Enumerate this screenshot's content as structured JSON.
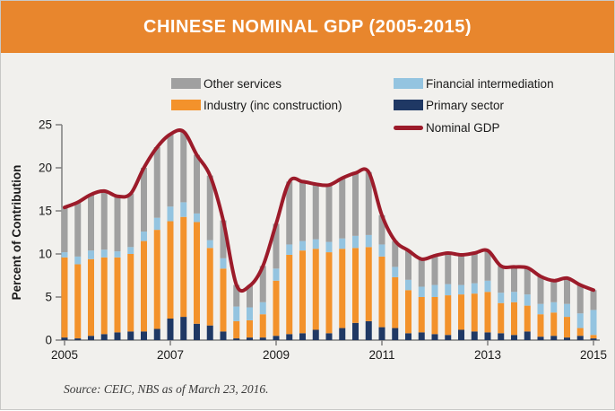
{
  "header": {
    "title": "CHINESE NOMINAL GDP (2005-2015)"
  },
  "source_note": "Source: CEIC, NBS as of March 23, 2016.",
  "colors": {
    "header_bg": "#E8862D",
    "page_bg": "#F1F0ED",
    "axis": "#7F7F7F",
    "text": "#1A1A1A",
    "bar_other_services": "#A0A0A0",
    "bar_industry": "#F3922B",
    "bar_financial": "#94C4E0",
    "bar_primary": "#1F3864",
    "line_nominal_gdp": "#9C1B2A"
  },
  "chart_data": {
    "type": "bar",
    "subtype": "stacked-bars-with-line",
    "title": "CHINESE NOMINAL GDP (2005-2015)",
    "xlabel": "",
    "ylabel": "Percent of Contribution",
    "ylim": [
      0,
      25
    ],
    "yticks": [
      0,
      5,
      10,
      15,
      20,
      25
    ],
    "xticks": [
      "2005",
      "2007",
      "2009",
      "2011",
      "2013",
      "2015"
    ],
    "xtick_indices": [
      0,
      8,
      16,
      24,
      32,
      40
    ],
    "grid": false,
    "legend_position": "top",
    "categories": [
      "2005 Q1",
      "2005 Q2",
      "2005 Q3",
      "2005 Q4",
      "2006 Q1",
      "2006 Q2",
      "2006 Q3",
      "2006 Q4",
      "2007 Q1",
      "2007 Q2",
      "2007 Q3",
      "2007 Q4",
      "2008 Q1",
      "2008 Q2",
      "2008 Q3",
      "2008 Q4",
      "2009 Q1",
      "2009 Q2",
      "2009 Q3",
      "2009 Q4",
      "2010 Q1",
      "2010 Q2",
      "2010 Q3",
      "2010 Q4",
      "2011 Q1",
      "2011 Q2",
      "2011 Q3",
      "2011 Q4",
      "2012 Q1",
      "2012 Q2",
      "2012 Q3",
      "2012 Q4",
      "2013 Q1",
      "2013 Q2",
      "2013 Q3",
      "2013 Q4",
      "2014 Q1",
      "2014 Q2",
      "2014 Q3",
      "2014 Q4",
      "2015 Q1"
    ],
    "series": [
      {
        "name": "Primary sector",
        "type": "bar",
        "color": "#1F3864",
        "values": [
          0.3,
          0.2,
          0.5,
          0.7,
          0.9,
          1.0,
          1.0,
          1.3,
          2.5,
          2.7,
          1.9,
          1.7,
          1.0,
          0.2,
          0.3,
          0.3,
          0.5,
          0.7,
          0.8,
          1.2,
          0.8,
          1.4,
          2.0,
          2.2,
          1.5,
          1.4,
          0.8,
          0.9,
          0.7,
          0.6,
          1.2,
          1.0,
          0.9,
          0.8,
          0.6,
          1.0,
          0.4,
          0.5,
          0.3,
          0.5,
          0.2
        ]
      },
      {
        "name": "Industry (inc construction)",
        "type": "bar",
        "color": "#F3922B",
        "values": [
          9.3,
          8.6,
          8.9,
          8.9,
          8.7,
          9.0,
          10.5,
          11.5,
          11.3,
          11.6,
          11.8,
          9.0,
          7.3,
          2.0,
          2.0,
          2.7,
          6.4,
          9.2,
          9.6,
          9.4,
          9.4,
          9.2,
          8.7,
          8.6,
          8.2,
          5.9,
          5.0,
          4.1,
          4.3,
          4.6,
          4.1,
          4.4,
          4.7,
          3.5,
          3.8,
          3.0,
          2.6,
          2.7,
          2.4,
          0.9,
          0.4
        ]
      },
      {
        "name": "Financial intermediation",
        "type": "bar",
        "color": "#94C4E0",
        "values": [
          0.6,
          0.9,
          1.0,
          0.9,
          0.7,
          0.8,
          1.1,
          1.4,
          1.7,
          1.7,
          1.0,
          0.9,
          1.2,
          1.7,
          1.5,
          1.4,
          1.4,
          1.2,
          1.1,
          1.1,
          1.2,
          1.2,
          1.4,
          1.4,
          1.4,
          1.2,
          1.2,
          1.2,
          1.4,
          1.3,
          1.1,
          1.2,
          1.3,
          1.2,
          1.2,
          1.3,
          1.2,
          1.2,
          1.5,
          1.7,
          2.9
        ]
      },
      {
        "name": "Other services",
        "type": "bar",
        "color": "#A0A0A0",
        "values": [
          5.2,
          6.3,
          6.5,
          6.8,
          6.4,
          6.2,
          7.4,
          8.2,
          8.4,
          8.2,
          6.8,
          7.5,
          4.4,
          2.5,
          2.5,
          4.2,
          5.2,
          7.3,
          6.9,
          6.4,
          6.6,
          7.0,
          7.3,
          7.3,
          3.4,
          3.0,
          3.4,
          3.2,
          3.4,
          3.6,
          3.5,
          3.5,
          3.5,
          3.1,
          2.9,
          3.1,
          3.2,
          2.5,
          3.0,
          3.3,
          2.3
        ]
      },
      {
        "name": "Nominal GDP",
        "type": "line",
        "color": "#9C1B2A",
        "values": [
          15.4,
          16.0,
          16.9,
          17.3,
          16.7,
          17.0,
          20.0,
          22.4,
          23.9,
          24.2,
          21.5,
          19.1,
          13.9,
          6.4,
          6.3,
          8.6,
          13.5,
          18.4,
          18.4,
          18.1,
          18.0,
          18.8,
          19.4,
          19.5,
          14.5,
          11.5,
          10.4,
          9.4,
          9.8,
          10.1,
          9.9,
          10.1,
          10.4,
          8.6,
          8.5,
          8.4,
          7.4,
          6.9,
          7.2,
          6.4,
          5.8
        ]
      }
    ],
    "legend": [
      {
        "label": "Other services",
        "color": "#A0A0A0",
        "shape": "rect"
      },
      {
        "label": "Industry (inc construction)",
        "color": "#F3922B",
        "shape": "rect"
      },
      {
        "label": "Financial intermediation",
        "color": "#94C4E0",
        "shape": "rect"
      },
      {
        "label": "Primary sector",
        "color": "#1F3864",
        "shape": "rect"
      },
      {
        "label": "Nominal GDP",
        "color": "#9C1B2A",
        "shape": "line"
      }
    ]
  }
}
